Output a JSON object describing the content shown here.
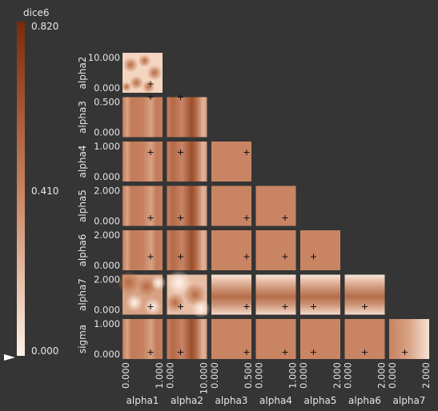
{
  "chart_data": {
    "type": "heatmap",
    "layout": "lower-triangular pairwise slice matrix",
    "colorbar": {
      "label": "dice6",
      "ticks": [
        "0.820",
        "0.410",
        "0.000"
      ],
      "range": [
        0.0,
        0.82
      ],
      "marker_value": 0.0,
      "colors": {
        "low": "#fcefe2",
        "mid": "#c8815e",
        "high": "#7a2a0a"
      }
    },
    "x_params": [
      {
        "name": "alpha1",
        "range": [
          0,
          1
        ],
        "tick_min": "0.000",
        "tick_max": "1.000",
        "marker": 0.7
      },
      {
        "name": "alpha2",
        "range": [
          0,
          10
        ],
        "tick_min": "0.000",
        "tick_max": "10.000",
        "marker": 3.4
      },
      {
        "name": "alpha3",
        "range": [
          0,
          0.5
        ],
        "tick_min": "0.000",
        "tick_max": "0.500",
        "marker": 0.44
      },
      {
        "name": "alpha4",
        "range": [
          0,
          1
        ],
        "tick_min": "0.000",
        "tick_max": "1.000",
        "marker": 0.73
      },
      {
        "name": "alpha5",
        "range": [
          0,
          2
        ],
        "tick_min": "0.000",
        "tick_max": "2.000",
        "marker": 0.66
      },
      {
        "name": "alpha6",
        "range": [
          0,
          2
        ],
        "tick_min": "0.000",
        "tick_max": "2.000",
        "marker": 1.0
      },
      {
        "name": "alpha7",
        "range": [
          0,
          2
        ],
        "tick_min": "0.000",
        "tick_max": "2.000",
        "marker": 0.78
      }
    ],
    "y_params": [
      {
        "name": "alpha2",
        "range": [
          0,
          10
        ],
        "tick_min": "0.000",
        "tick_max": "10.000",
        "marker": 2.2
      },
      {
        "name": "alpha3",
        "range": [
          0,
          0.5
        ],
        "tick_min": "0.000",
        "tick_max": "0.500",
        "marker": 0.5
      },
      {
        "name": "alpha4",
        "range": [
          0,
          1
        ],
        "tick_min": "0.000",
        "tick_max": "1.000",
        "marker": 0.73
      },
      {
        "name": "alpha5",
        "range": [
          0,
          2
        ],
        "tick_min": "0.000",
        "tick_max": "2.000",
        "marker": 0.4
      },
      {
        "name": "alpha6",
        "range": [
          0,
          2
        ],
        "tick_min": "0.000",
        "tick_max": "2.000",
        "marker": 0.68
      },
      {
        "name": "alpha7",
        "range": [
          0,
          2
        ],
        "tick_min": "0.000",
        "tick_max": "2.000",
        "marker": 0.4
      },
      {
        "name": "sigma",
        "range": [
          0,
          1
        ],
        "tick_min": "0.000",
        "tick_max": "1.000",
        "marker": 0.17
      }
    ],
    "cells": [
      {
        "row": 0,
        "col": 0,
        "pattern": "blobs"
      },
      {
        "row": 1,
        "col": 0,
        "pattern": "vbands-light"
      },
      {
        "row": 1,
        "col": 1,
        "pattern": "vbands-dark"
      },
      {
        "row": 2,
        "col": 0,
        "pattern": "vbands-light"
      },
      {
        "row": 2,
        "col": 1,
        "pattern": "vbands-dark"
      },
      {
        "row": 2,
        "col": 2,
        "pattern": "flat"
      },
      {
        "row": 3,
        "col": 0,
        "pattern": "vbands-light"
      },
      {
        "row": 3,
        "col": 1,
        "pattern": "vbands-dark"
      },
      {
        "row": 3,
        "col": 2,
        "pattern": "flat"
      },
      {
        "row": 3,
        "col": 3,
        "pattern": "flat"
      },
      {
        "row": 4,
        "col": 0,
        "pattern": "vbands-light"
      },
      {
        "row": 4,
        "col": 1,
        "pattern": "vbands-dark"
      },
      {
        "row": 4,
        "col": 2,
        "pattern": "flat"
      },
      {
        "row": 4,
        "col": 3,
        "pattern": "flat"
      },
      {
        "row": 4,
        "col": 4,
        "pattern": "flat"
      },
      {
        "row": 5,
        "col": 0,
        "pattern": "blobs2"
      },
      {
        "row": 5,
        "col": 1,
        "pattern": "blobs3"
      },
      {
        "row": 5,
        "col": 2,
        "pattern": "hbands"
      },
      {
        "row": 5,
        "col": 3,
        "pattern": "hbands"
      },
      {
        "row": 5,
        "col": 4,
        "pattern": "hbands"
      },
      {
        "row": 5,
        "col": 5,
        "pattern": "hbands"
      },
      {
        "row": 6,
        "col": 0,
        "pattern": "vbands-light"
      },
      {
        "row": 6,
        "col": 1,
        "pattern": "vbands-dark"
      },
      {
        "row": 6,
        "col": 2,
        "pattern": "flat"
      },
      {
        "row": 6,
        "col": 3,
        "pattern": "flat"
      },
      {
        "row": 6,
        "col": 4,
        "pattern": "flat"
      },
      {
        "row": 6,
        "col": 5,
        "pattern": "flat"
      },
      {
        "row": 6,
        "col": 6,
        "pattern": "vgrad"
      }
    ]
  }
}
